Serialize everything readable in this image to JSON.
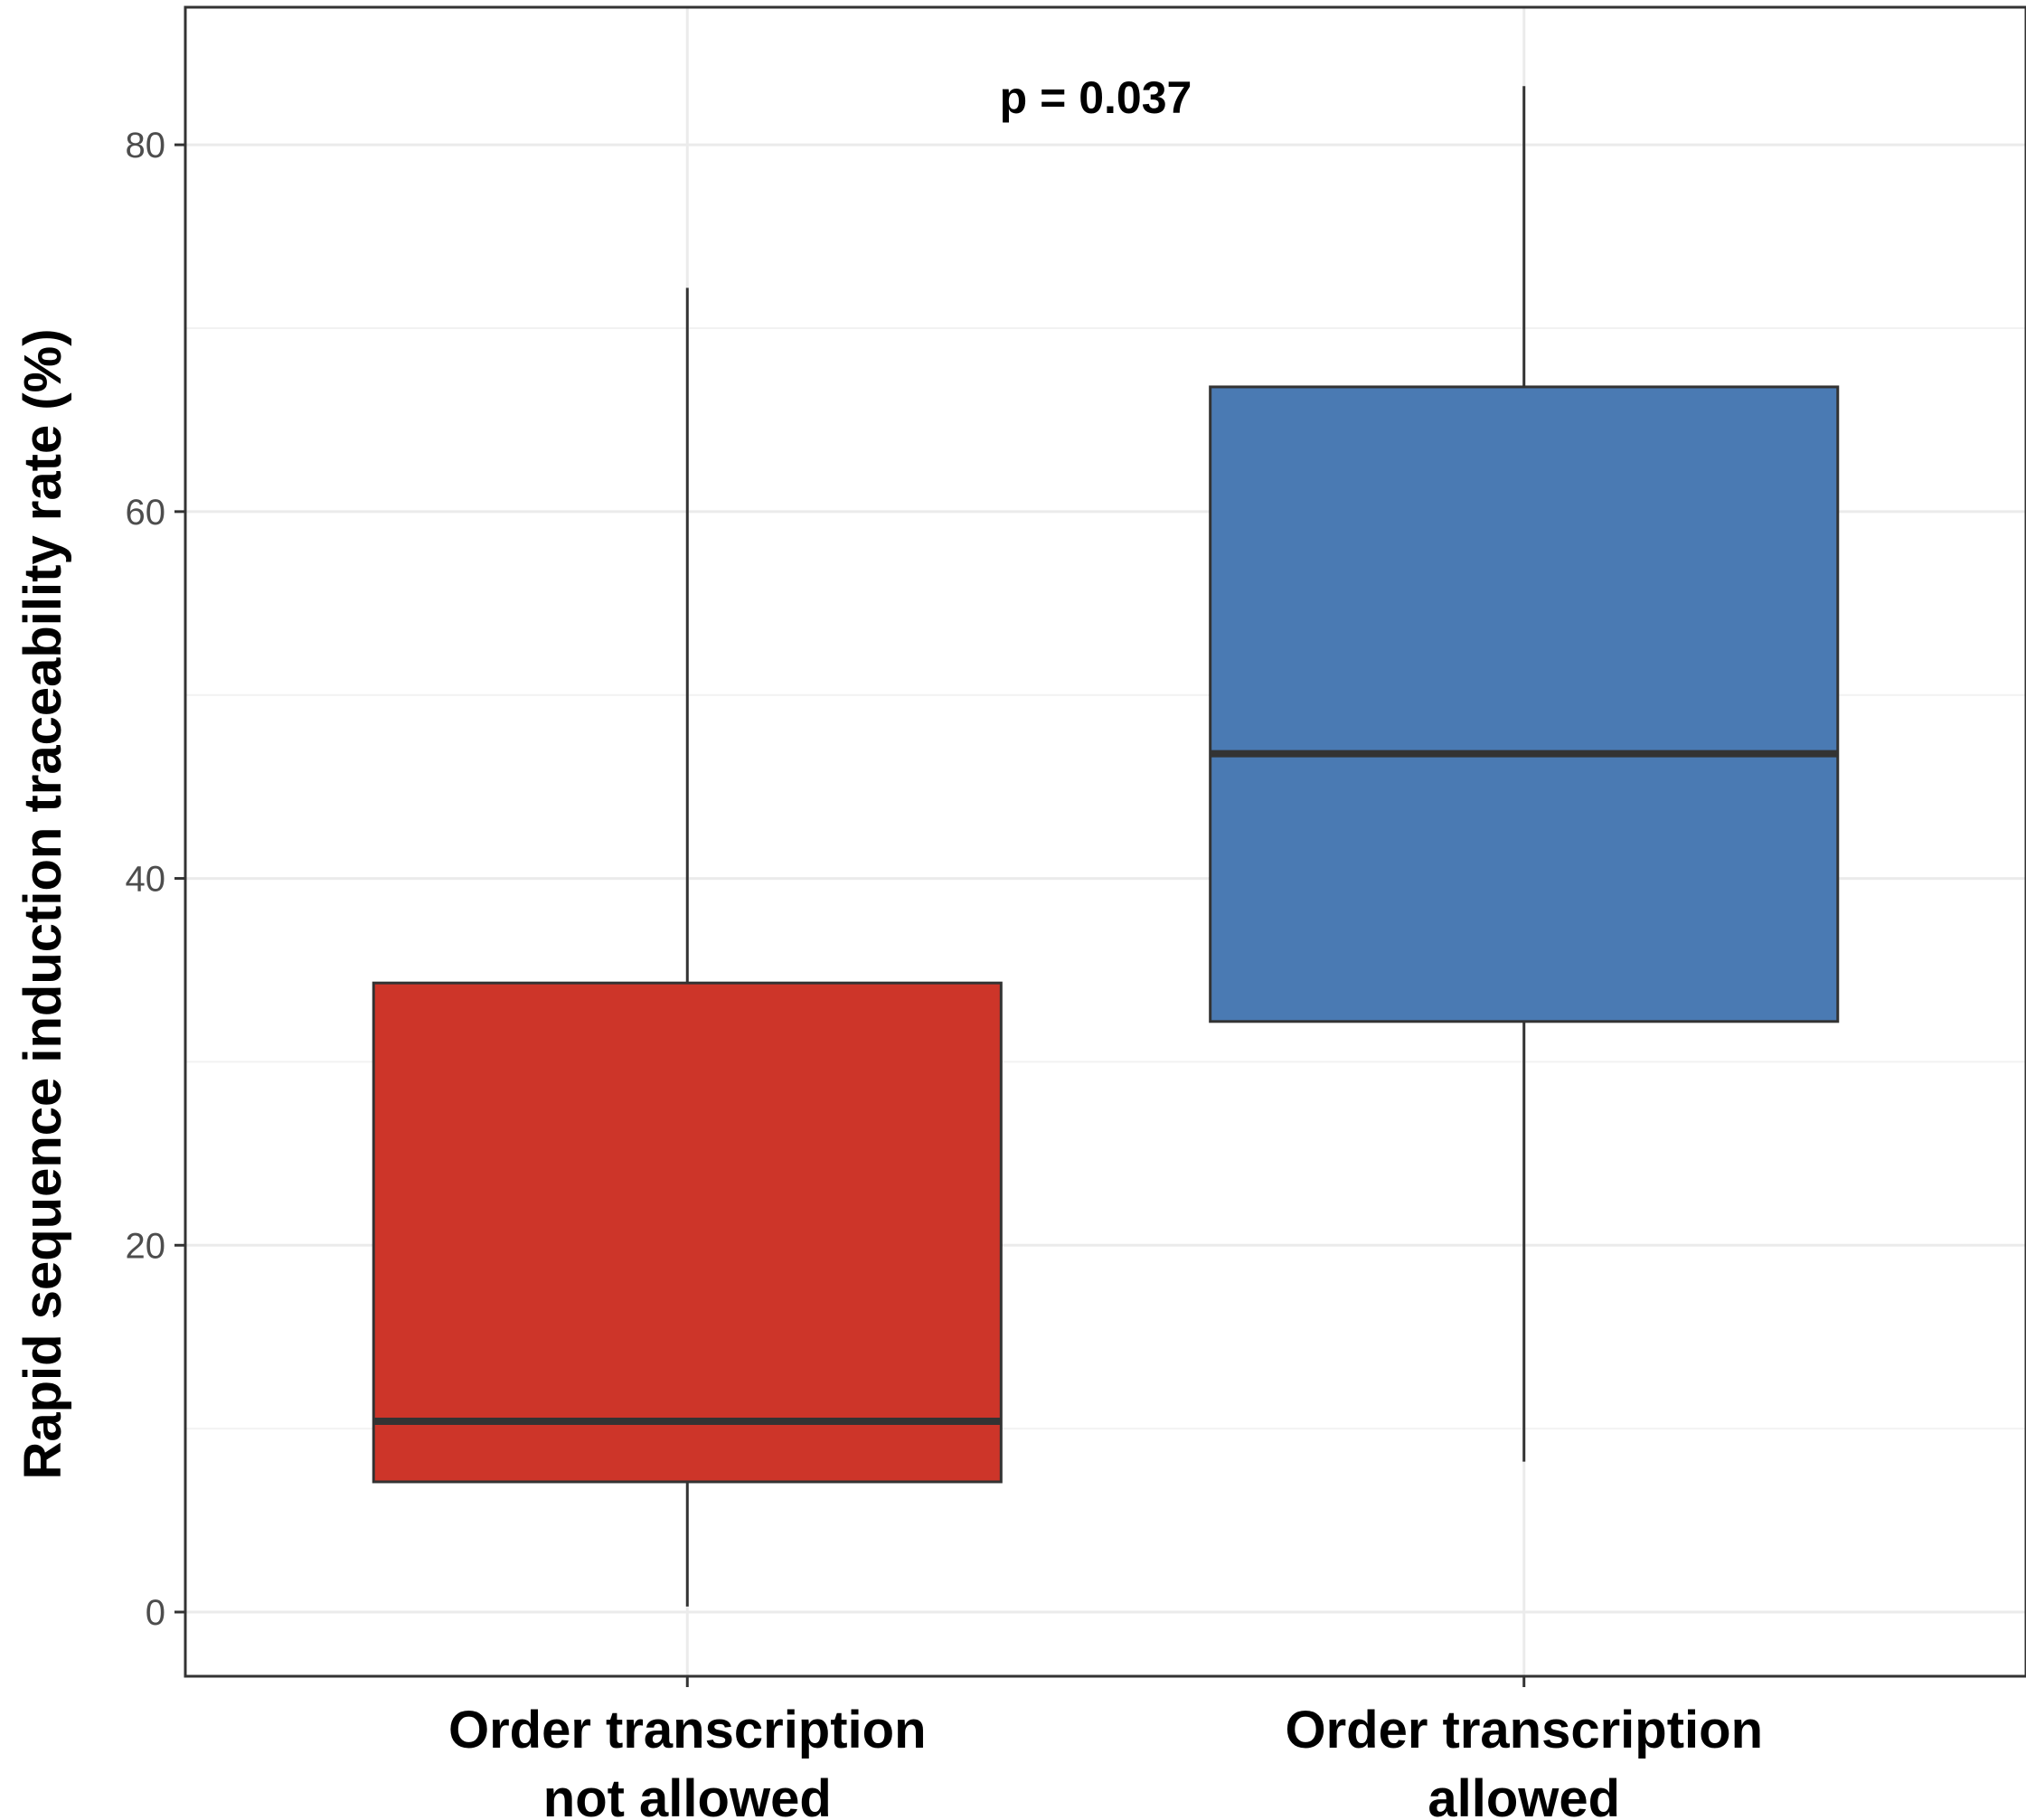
{
  "chart_data": {
    "type": "boxplot",
    "title": "",
    "xlabel": "",
    "ylabel": "Rapid sequence induction traceability rate (%)",
    "ylim": [
      -3.5,
      87.5
    ],
    "yticks": [
      0,
      20,
      40,
      60,
      80
    ],
    "grid": true,
    "annotation": "p = 0.037",
    "categories": [
      {
        "label_lines": [
          "Order transcription",
          "not allowed"
        ],
        "color": "#CD3529",
        "whisker_low": 0.3,
        "q1": 7.1,
        "median": 10.4,
        "q3": 34.3,
        "whisker_high": 72.2
      },
      {
        "label_lines": [
          "Order transcription",
          "allowed"
        ],
        "color": "#4A7AB3",
        "whisker_low": 8.2,
        "q1": 32.2,
        "median": 46.8,
        "q3": 66.8,
        "whisker_high": 83.2
      }
    ]
  }
}
